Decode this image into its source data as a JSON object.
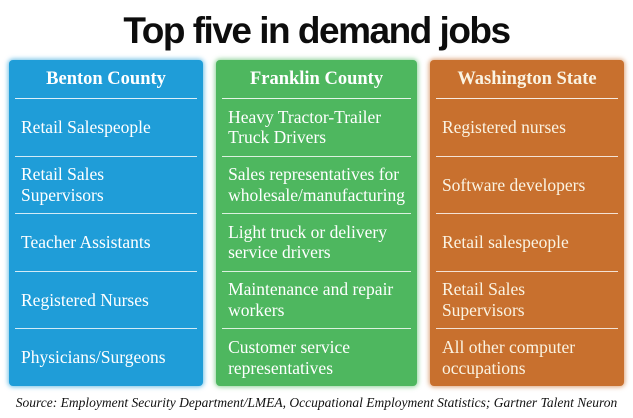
{
  "title": "Top five in demand jobs",
  "source": "Source: Employment Security Department/LMEA, Occupational Employment Statistics; Gartner Talent Neuron",
  "colors": {
    "benton": "#1f9dd8",
    "franklin": "#4eb75f",
    "washington": "#c8702e",
    "title_text": "#0d0d0d",
    "cell_text": "#ffffff"
  },
  "columns": [
    {
      "header": "Benton County",
      "color": "#1f9dd8",
      "rows": [
        "Retail Salespeople",
        "Retail Sales Supervisors",
        "Teacher Assistants",
        "Registered Nurses",
        "Physicians/Surgeons"
      ]
    },
    {
      "header": "Franklin County",
      "color": "#4eb75f",
      "rows": [
        "Heavy Tractor-Trailer Truck Drivers",
        "Sales representatives for wholesale/manufacturing",
        "Light truck or delivery service drivers",
        "Maintenance and repair workers",
        "Customer service representatives"
      ]
    },
    {
      "header": "Washington State",
      "color": "#c8702e",
      "rows": [
        "Registered nurses",
        "Software developers",
        "Retail salespeople",
        "Retail Sales Supervisors",
        "All other computer occupations"
      ]
    }
  ],
  "chart_data": {
    "type": "table",
    "title": "Top five in demand jobs",
    "columns": [
      "Benton County",
      "Franklin County",
      "Washington State"
    ],
    "rows": [
      [
        "Retail Salespeople",
        "Heavy Tractor-Trailer Truck Drivers",
        "Registered nurses"
      ],
      [
        "Retail Sales Supervisors",
        "Sales representatives for wholesale/manufacturing",
        "Software developers"
      ],
      [
        "Teacher Assistants",
        "Light truck or delivery service drivers",
        "Retail salespeople"
      ],
      [
        "Registered Nurses",
        "Maintenance and repair workers",
        "Retail Sales Supervisors"
      ],
      [
        "Physicians/Surgeons",
        "Customer service representatives",
        "All other computer occupations"
      ]
    ],
    "source": "Source: Employment Security Department/LMEA, Occupational Employment Statistics; Gartner Talent Neuron",
    "layout": "three color-coded columns, header row on top, 5 ranked rows each, thin white separators"
  }
}
